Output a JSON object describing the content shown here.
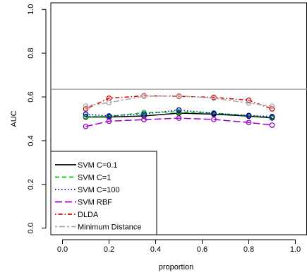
{
  "chart_data": {
    "type": "line",
    "title": "",
    "xlabel": "proportion",
    "ylabel": "AUC",
    "xlim": [
      -0.05,
      1.05
    ],
    "ylim": [
      -0.03,
      1.03
    ],
    "x_ticks": [
      "0.0",
      "0.2",
      "0.4",
      "0.6",
      "0.8",
      "1.0"
    ],
    "y_ticks": [
      "0.0",
      "0.2",
      "0.4",
      "0.6",
      "0.8",
      "1.0"
    ],
    "x": [
      0.1,
      0.2,
      0.35,
      0.5,
      0.65,
      0.8,
      0.9
    ],
    "reference_line": 0.635,
    "grid": false,
    "legend_position": "bottom-left",
    "series": [
      {
        "name": "SVM C=0.1",
        "color": "#000000",
        "dash": "solid",
        "values": [
          0.508,
          0.508,
          0.513,
          0.526,
          0.521,
          0.512,
          0.504
        ]
      },
      {
        "name": "SVM C=1",
        "color": "#00cc00",
        "dash": "dashed",
        "values": [
          0.511,
          0.511,
          0.528,
          0.532,
          0.526,
          0.515,
          0.507
        ]
      },
      {
        "name": "SVM C=100",
        "color": "#0000cc",
        "dash": "dotted",
        "values": [
          0.521,
          0.513,
          0.522,
          0.54,
          0.525,
          0.515,
          0.51
        ]
      },
      {
        "name": "SVM RBF",
        "color": "#9900cc",
        "dash": "longdash",
        "values": [
          0.465,
          0.489,
          0.496,
          0.503,
          0.497,
          0.483,
          0.471
        ]
      },
      {
        "name": "DLDA",
        "color": "#dd0000",
        "dash": "dotdash",
        "values": [
          0.545,
          0.594,
          0.605,
          0.603,
          0.598,
          0.585,
          0.545
        ]
      },
      {
        "name": "Minimum Distance",
        "color": "#aaaaaa",
        "dash": "twodash",
        "values": [
          0.558,
          0.574,
          0.603,
          0.605,
          0.594,
          0.572,
          0.557
        ]
      }
    ]
  }
}
